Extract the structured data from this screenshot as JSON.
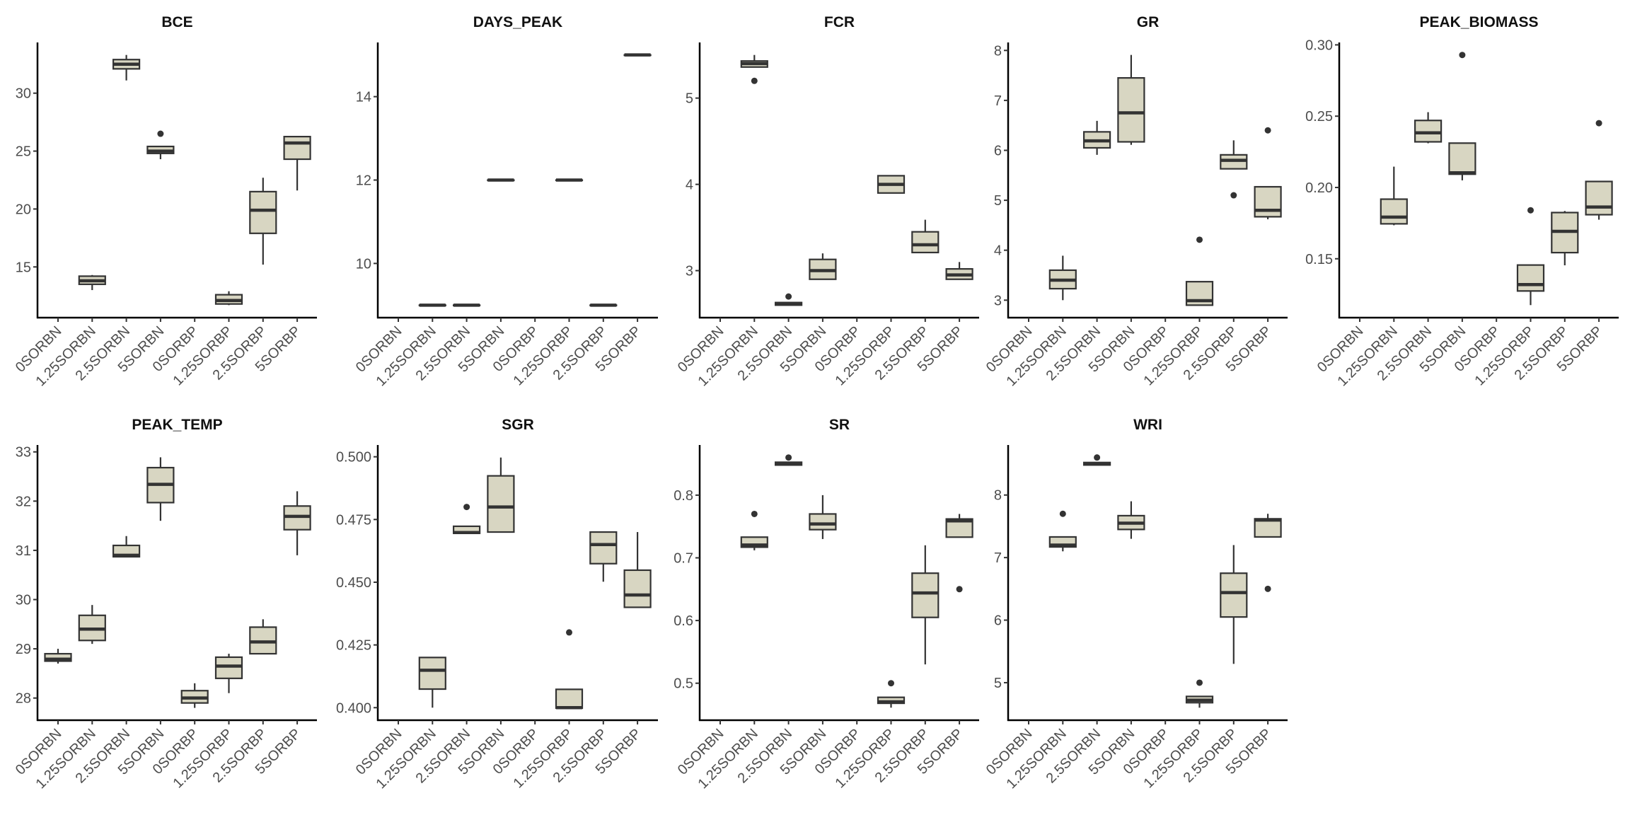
{
  "chart_data": {
    "type": "box",
    "layout": "faceted grid, 2 rows x 5 columns, free y scales",
    "categories": [
      "0SORBN",
      "1.25SORBN",
      "2.5SORBN",
      "5SORBN",
      "0SORBP",
      "1.25SORBP",
      "2.5SORBP",
      "5SORBP"
    ],
    "xlabel": "",
    "ylabel": "",
    "legend": "none",
    "grid": false,
    "colors": {
      "box_fill": "#d8d6c2",
      "box_line": "#333333",
      "axis": "#000000"
    },
    "panels": [
      {
        "title": "BCE",
        "ylim": [
          10.62,
          34.38
        ],
        "yticks": [
          "15",
          "20",
          "25",
          "30"
        ],
        "ytick_values": [
          15,
          20,
          25,
          30
        ],
        "boxes": [
          null,
          {
            "wlo": 13.0,
            "q1": 13.5,
            "med": 13.8,
            "q3": 14.2,
            "whi": 14.3,
            "out": []
          },
          {
            "wlo": 31.1,
            "q1": 32.1,
            "med": 32.5,
            "q3": 32.9,
            "whi": 33.3,
            "out": []
          },
          {
            "wlo": 24.3,
            "q1": 24.8,
            "med": 25.0,
            "q3": 25.4,
            "whi": 25.4,
            "out": [
              26.5
            ]
          },
          null,
          {
            "wlo": 11.7,
            "q1": 11.8,
            "med": 12.1,
            "q3": 12.6,
            "whi": 12.9,
            "out": []
          },
          {
            "wlo": 15.2,
            "q1": 17.9,
            "med": 19.9,
            "q3": 21.5,
            "whi": 22.7,
            "out": []
          },
          {
            "wlo": 21.6,
            "q1": 24.3,
            "med": 25.7,
            "q3": 26.25,
            "whi": 26.25,
            "out": []
          }
        ]
      },
      {
        "title": "DAYS_PEAK",
        "ylim": [
          8.7,
          15.3
        ],
        "yticks": [
          "10",
          "12",
          "14"
        ],
        "ytick_values": [
          10,
          12,
          14
        ],
        "boxes": [
          null,
          {
            "wlo": 9,
            "q1": 9,
            "med": 9,
            "q3": 9,
            "whi": 9,
            "out": []
          },
          {
            "wlo": 9,
            "q1": 9,
            "med": 9,
            "q3": 9,
            "whi": 9,
            "out": []
          },
          {
            "wlo": 12,
            "q1": 12,
            "med": 12,
            "q3": 12,
            "whi": 12,
            "out": []
          },
          null,
          {
            "wlo": 12,
            "q1": 12,
            "med": 12,
            "q3": 12,
            "whi": 12,
            "out": []
          },
          {
            "wlo": 9,
            "q1": 9,
            "med": 9,
            "q3": 9,
            "whi": 9,
            "out": []
          },
          {
            "wlo": 15,
            "q1": 15,
            "med": 15,
            "q3": 15,
            "whi": 15,
            "out": []
          }
        ]
      },
      {
        "title": "FCR",
        "ylim": [
          2.455,
          5.645
        ],
        "yticks": [
          "3",
          "4",
          "5"
        ],
        "ytick_values": [
          3,
          4,
          5
        ],
        "boxes": [
          null,
          {
            "wlo": 5.36,
            "q1": 5.36,
            "med": 5.4,
            "q3": 5.43,
            "whi": 5.5,
            "out": [
              5.2
            ]
          },
          {
            "wlo": 2.6,
            "q1": 2.6,
            "med": 2.62,
            "q3": 2.63,
            "whi": 2.63,
            "out": [
              2.7
            ]
          },
          {
            "wlo": 2.9,
            "q1": 2.9,
            "med": 3.0,
            "q3": 3.13,
            "whi": 3.2,
            "out": []
          },
          null,
          {
            "wlo": 3.9,
            "q1": 3.9,
            "med": 4.0,
            "q3": 4.1,
            "whi": 4.1,
            "out": []
          },
          {
            "wlo": 3.21,
            "q1": 3.21,
            "med": 3.3,
            "q3": 3.45,
            "whi": 3.59,
            "out": []
          },
          {
            "wlo": 2.9,
            "q1": 2.9,
            "med": 2.95,
            "q3": 3.02,
            "whi": 3.1,
            "out": []
          }
        ]
      },
      {
        "title": "GR",
        "ylim": [
          2.65,
          8.16
        ],
        "yticks": [
          "3",
          "4",
          "5",
          "6",
          "7",
          "8"
        ],
        "ytick_values": [
          3,
          4,
          5,
          6,
          7,
          8
        ],
        "boxes": [
          null,
          {
            "wlo": 3.0,
            "q1": 3.23,
            "med": 3.4,
            "q3": 3.6,
            "whi": 3.89,
            "out": []
          },
          {
            "wlo": 5.91,
            "q1": 6.05,
            "med": 6.19,
            "q3": 6.37,
            "whi": 6.59,
            "out": []
          },
          {
            "wlo": 6.11,
            "q1": 6.17,
            "med": 6.75,
            "q3": 7.45,
            "whi": 7.91,
            "out": []
          },
          null,
          {
            "wlo": 2.9,
            "q1": 2.9,
            "med": 2.99,
            "q3": 3.37,
            "whi": 3.37,
            "out": [
              4.21
            ]
          },
          {
            "wlo": 5.63,
            "q1": 5.63,
            "med": 5.8,
            "q3": 5.91,
            "whi": 6.2,
            "out": [
              5.1
            ]
          },
          {
            "wlo": 4.62,
            "q1": 4.67,
            "med": 4.8,
            "q3": 5.27,
            "whi": 5.27,
            "out": [
              6.4
            ]
          }
        ]
      },
      {
        "title": "PEAK_BIOMASS",
        "ylim": [
          0.1087,
          0.3017
        ],
        "yticks": [
          "0.15",
          "0.20",
          "0.25",
          "0.30"
        ],
        "ytick_values": [
          0.15,
          0.2,
          0.25,
          0.3
        ],
        "boxes": [
          null,
          {
            "wlo": 0.1735,
            "q1": 0.1745,
            "med": 0.1792,
            "q3": 0.1918,
            "whi": 0.2146,
            "out": []
          },
          {
            "wlo": 0.231,
            "q1": 0.232,
            "med": 0.2383,
            "q3": 0.247,
            "whi": 0.2528,
            "out": []
          },
          {
            "wlo": 0.205,
            "q1": 0.2093,
            "med": 0.2103,
            "q3": 0.2311,
            "whi": 0.2311,
            "out": [
              0.2929
            ]
          },
          null,
          {
            "wlo": 0.1175,
            "q1": 0.1274,
            "med": 0.1319,
            "q3": 0.1456,
            "whi": 0.1456,
            "out": [
              0.184
            ]
          },
          {
            "wlo": 0.1454,
            "q1": 0.1543,
            "med": 0.1692,
            "q3": 0.1824,
            "whi": 0.1835,
            "out": []
          },
          {
            "wlo": 0.1774,
            "q1": 0.1809,
            "med": 0.1863,
            "q3": 0.2042,
            "whi": 0.2042,
            "out": [
              0.2451
            ]
          }
        ]
      },
      {
        "title": "PEAK_TEMP",
        "ylim": [
          27.55,
          33.14
        ],
        "yticks": [
          "28",
          "29",
          "30",
          "31",
          "32",
          "33"
        ],
        "ytick_values": [
          28,
          29,
          30,
          31,
          32,
          33
        ],
        "boxes": [
          {
            "wlo": 28.7,
            "q1": 28.75,
            "med": 28.79,
            "q3": 28.9,
            "whi": 29.0,
            "out": []
          },
          {
            "wlo": 29.1,
            "q1": 29.17,
            "med": 29.4,
            "q3": 29.68,
            "whi": 29.89,
            "out": []
          },
          {
            "wlo": 30.87,
            "q1": 30.87,
            "med": 30.9,
            "q3": 31.1,
            "whi": 31.29,
            "out": []
          },
          {
            "wlo": 31.6,
            "q1": 31.97,
            "med": 32.34,
            "q3": 32.68,
            "whi": 32.89,
            "out": []
          },
          {
            "wlo": 27.8,
            "q1": 27.9,
            "med": 28.0,
            "q3": 28.15,
            "whi": 28.3,
            "out": []
          },
          {
            "wlo": 28.1,
            "q1": 28.4,
            "med": 28.65,
            "q3": 28.83,
            "whi": 28.9,
            "out": []
          },
          {
            "wlo": 28.9,
            "q1": 28.9,
            "med": 29.14,
            "q3": 29.44,
            "whi": 29.6,
            "out": []
          },
          {
            "wlo": 30.9,
            "q1": 31.42,
            "med": 31.69,
            "q3": 31.9,
            "whi": 32.2,
            "out": []
          }
        ]
      },
      {
        "title": "SGR",
        "ylim": [
          0.395,
          0.5047
        ],
        "yticks": [
          "0.400",
          "0.425",
          "0.450",
          "0.475",
          "0.500"
        ],
        "ytick_values": [
          0.4,
          0.425,
          0.45,
          0.475,
          0.5
        ],
        "boxes": [
          null,
          {
            "wlo": 0.4,
            "q1": 0.4074,
            "med": 0.4149,
            "q3": 0.42,
            "whi": 0.42,
            "out": []
          },
          {
            "wlo": 0.4695,
            "q1": 0.4695,
            "med": 0.4698,
            "q3": 0.4723,
            "whi": 0.4723,
            "out": [
              0.48
            ]
          },
          {
            "wlo": 0.47,
            "q1": 0.47,
            "med": 0.48,
            "q3": 0.4924,
            "whi": 0.4997,
            "out": []
          },
          null,
          {
            "wlo": 0.3998,
            "q1": 0.3998,
            "med": 0.4,
            "q3": 0.4073,
            "whi": 0.4073,
            "out": [
              0.43
            ]
          },
          {
            "wlo": 0.4502,
            "q1": 0.4574,
            "med": 0.465,
            "q3": 0.47,
            "whi": 0.47,
            "out": []
          },
          {
            "wlo": 0.44,
            "q1": 0.44,
            "med": 0.4449,
            "q3": 0.4548,
            "whi": 0.47,
            "out": []
          }
        ]
      },
      {
        "title": "SR",
        "ylim": [
          0.441,
          0.88
        ],
        "yticks": [
          "0.5",
          "0.6",
          "0.7",
          "0.8"
        ],
        "ytick_values": [
          0.5,
          0.6,
          0.7,
          0.8
        ],
        "boxes": [
          null,
          {
            "wlo": 0.712,
            "q1": 0.717,
            "med": 0.7205,
            "q3": 0.733,
            "whi": 0.733,
            "out": [
              0.77
            ]
          },
          {
            "wlo": 0.848,
            "q1": 0.848,
            "med": 0.85,
            "q3": 0.8525,
            "whi": 0.8525,
            "out": [
              0.86
            ]
          },
          {
            "wlo": 0.73,
            "q1": 0.745,
            "med": 0.754,
            "q3": 0.77,
            "whi": 0.8,
            "out": []
          },
          null,
          {
            "wlo": 0.461,
            "q1": 0.468,
            "med": 0.4704,
            "q3": 0.4775,
            "whi": 0.4775,
            "out": [
              0.5
            ]
          },
          {
            "wlo": 0.53,
            "q1": 0.605,
            "med": 0.644,
            "q3": 0.6755,
            "whi": 0.72,
            "out": []
          },
          {
            "wlo": 0.733,
            "q1": 0.733,
            "med": 0.759,
            "q3": 0.762,
            "whi": 0.77,
            "out": [
              0.65
            ]
          }
        ]
      },
      {
        "title": "WRI",
        "ylim": [
          4.4,
          8.8
        ],
        "yticks": [
          "5",
          "6",
          "7",
          "8"
        ],
        "ytick_values": [
          5,
          6,
          7,
          8
        ],
        "boxes": [
          null,
          {
            "wlo": 7.1,
            "q1": 7.17,
            "med": 7.2,
            "q3": 7.33,
            "whi": 7.33,
            "out": [
              7.7
            ]
          },
          {
            "wlo": 8.48,
            "q1": 8.48,
            "med": 8.5,
            "q3": 8.52,
            "whi": 8.52,
            "out": [
              8.6
            ]
          },
          {
            "wlo": 7.3,
            "q1": 7.45,
            "med": 7.55,
            "q3": 7.67,
            "whi": 7.9,
            "out": []
          },
          null,
          {
            "wlo": 4.6,
            "q1": 4.68,
            "med": 4.72,
            "q3": 4.78,
            "whi": 4.78,
            "out": [
              5.0
            ]
          },
          {
            "wlo": 5.3,
            "q1": 6.05,
            "med": 6.44,
            "q3": 6.75,
            "whi": 7.2,
            "out": []
          },
          {
            "wlo": 7.33,
            "q1": 7.33,
            "med": 7.6,
            "q3": 7.62,
            "whi": 7.7,
            "out": [
              6.5
            ]
          }
        ]
      }
    ]
  }
}
